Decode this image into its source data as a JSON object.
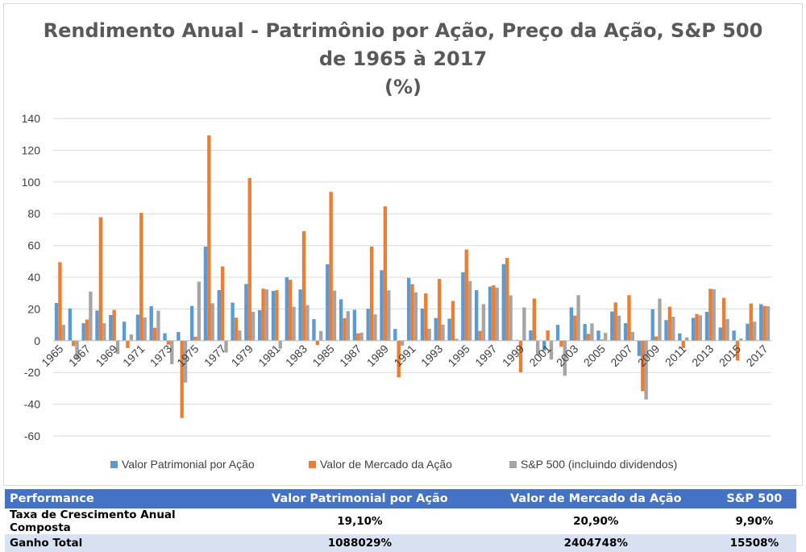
{
  "title": {
    "line1": "Rendimento Anual - Patrimônio por Ação, Preço da Ação, S&P 500",
    "line2": "de 1965 à 2017",
    "line3": "(%)"
  },
  "chart_data": {
    "type": "bar",
    "categories": [
      "1965",
      "1966",
      "1967",
      "1968",
      "1969",
      "1970",
      "1971",
      "1972",
      "1973",
      "1974",
      "1975",
      "1976",
      "1977",
      "1978",
      "1979",
      "1980",
      "1981",
      "1982",
      "1983",
      "1984",
      "1985",
      "1986",
      "1987",
      "1988",
      "1989",
      "1990",
      "1991",
      "1992",
      "1993",
      "1994",
      "1995",
      "1996",
      "1997",
      "1998",
      "1999",
      "2000",
      "2001",
      "2002",
      "2003",
      "2004",
      "2005",
      "2006",
      "2007",
      "2008",
      "2009",
      "2010",
      "2011",
      "2012",
      "2013",
      "2014",
      "2015",
      "2016",
      "2017"
    ],
    "x_tick_labels": [
      "1965",
      "1967",
      "1969",
      "1971",
      "1973",
      "1975",
      "1977",
      "1979",
      "1981",
      "1983",
      "1985",
      "1987",
      "1989",
      "1991",
      "1993",
      "1995",
      "1997",
      "1999",
      "2001",
      "2003",
      "2005",
      "2007",
      "2009",
      "2011",
      "2013",
      "2015",
      "2017"
    ],
    "series": [
      {
        "name": "Valor Patrimonial por Ação",
        "color": "#5b9bd5",
        "values": [
          23.8,
          20.3,
          11.0,
          19.0,
          16.2,
          12.0,
          16.4,
          21.7,
          4.7,
          5.5,
          21.9,
          59.3,
          31.9,
          24.0,
          35.7,
          19.3,
          31.4,
          40.0,
          32.3,
          13.6,
          48.2,
          26.1,
          19.5,
          20.1,
          44.4,
          7.4,
          39.6,
          20.3,
          14.3,
          13.9,
          43.1,
          31.8,
          34.1,
          48.3,
          0.5,
          6.5,
          -6.2,
          10.0,
          21.0,
          10.5,
          6.4,
          18.4,
          11.0,
          -9.6,
          19.8,
          13.0,
          4.6,
          14.4,
          18.2,
          8.3,
          6.4,
          10.7,
          23.0
        ]
      },
      {
        "name": "Valor de Mercado da Ação",
        "color": "#ed7d31",
        "values": [
          49.5,
          -3.4,
          13.3,
          77.8,
          19.4,
          -4.6,
          80.5,
          8.1,
          -2.5,
          -48.7,
          2.5,
          129.3,
          46.8,
          14.5,
          102.5,
          32.8,
          31.8,
          38.4,
          69.0,
          -2.7,
          93.7,
          14.2,
          4.6,
          59.3,
          84.6,
          -23.1,
          35.6,
          29.8,
          38.9,
          25.0,
          57.4,
          6.2,
          34.9,
          52.2,
          -19.9,
          26.6,
          6.5,
          -3.8,
          15.8,
          4.3,
          0.8,
          24.1,
          28.7,
          -31.8,
          2.7,
          21.4,
          -4.7,
          16.8,
          32.7,
          27.0,
          -12.5,
          23.4,
          21.9
        ]
      },
      {
        "name": "S&P 500 (incluindo dividendos)",
        "color": "#a5a5a5",
        "values": [
          10.0,
          -11.7,
          30.9,
          11.0,
          -8.4,
          3.9,
          14.6,
          18.9,
          -14.8,
          -26.4,
          37.2,
          23.6,
          -7.4,
          6.4,
          18.2,
          32.3,
          -5.0,
          21.4,
          22.4,
          6.1,
          31.6,
          18.6,
          5.1,
          16.6,
          31.7,
          -3.1,
          30.5,
          7.6,
          10.1,
          1.3,
          37.6,
          23.0,
          33.4,
          28.6,
          21.0,
          -9.1,
          -11.9,
          -22.1,
          28.7,
          10.9,
          4.9,
          15.8,
          5.5,
          -37.0,
          26.5,
          15.1,
          2.1,
          16.0,
          32.4,
          13.7,
          1.4,
          12.0,
          21.8
        ]
      }
    ],
    "ylim": [
      -60,
      140
    ],
    "yticks": [
      -60,
      -40,
      -20,
      0,
      20,
      40,
      60,
      80,
      100,
      120,
      140
    ],
    "grid": true,
    "legend": "bottom"
  },
  "table": {
    "headers": [
      "Performance",
      "Valor Patrimonial por Ação",
      "Valor de Mercado da Ação",
      "S&P 500"
    ],
    "rows": [
      [
        "Taxa de Crescimento Anual Composta",
        "19,10%",
        "20,90%",
        "9,90%"
      ],
      [
        "Ganho Total",
        "1088029%",
        "2404748%",
        "15508%"
      ]
    ]
  }
}
